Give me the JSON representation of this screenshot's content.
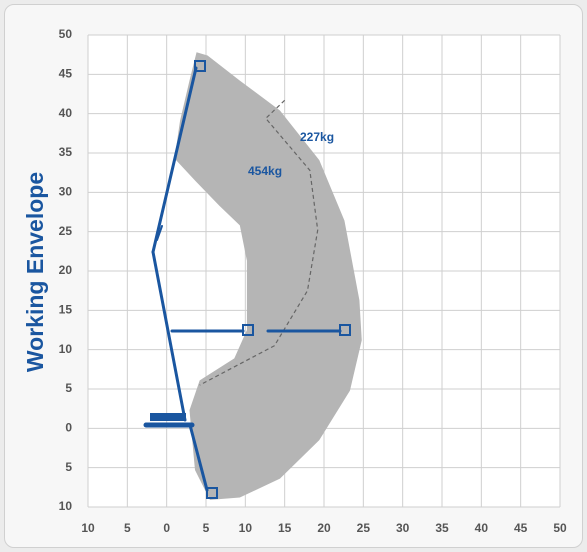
{
  "chart_data": {
    "type": "area",
    "title": "Working Envelope",
    "annotations": [
      "227kg",
      "454kg"
    ],
    "xlim": [
      -10,
      50
    ],
    "ylim": [
      -10,
      50
    ],
    "xticks": [
      {
        "value": -10,
        "label": "10"
      },
      {
        "value": -5,
        "label": "5"
      },
      0,
      5,
      10,
      15,
      20,
      25,
      30,
      35,
      40,
      45,
      50
    ],
    "yticks": [
      {
        "value": -10,
        "label": "10"
      },
      {
        "value": -5,
        "label": "5"
      },
      0,
      5,
      10,
      15,
      20,
      25,
      30,
      35,
      40,
      45,
      50
    ],
    "grid": true,
    "series": [
      {
        "color": "#b5b5b5",
        "style": "fill",
        "x": [
          3.8,
          5.2,
          9.3,
          14.4,
          19.4,
          22.6,
          24.5,
          24.8,
          23.3,
          19.4,
          14.4,
          9.3,
          5.5,
          3.6,
          2.9,
          4.2,
          8.6,
          10.2,
          10.2,
          9.3,
          6.7,
          3.6,
          1.0,
          1.7,
          2.9
        ],
        "values": [
          47.8,
          47.4,
          44.2,
          40.4,
          34.1,
          26.4,
          16.3,
          11.2,
          4.8,
          -1.5,
          -6.4,
          -8.8,
          -9.1,
          -5.3,
          2.3,
          6.1,
          8.9,
          12.5,
          21.3,
          25.8,
          28.3,
          31.5,
          34.3,
          39.1,
          44.2
        ]
      },
      {
        "color": "#666666",
        "style": "dashed",
        "x": [
          15.0,
          12.6,
          18.2,
          19.2,
          17.9,
          13.7,
          4.2
        ],
        "values": [
          41.7,
          39.4,
          32.8,
          25.2,
          17.5,
          10.5,
          5.5
        ]
      }
    ]
  }
}
